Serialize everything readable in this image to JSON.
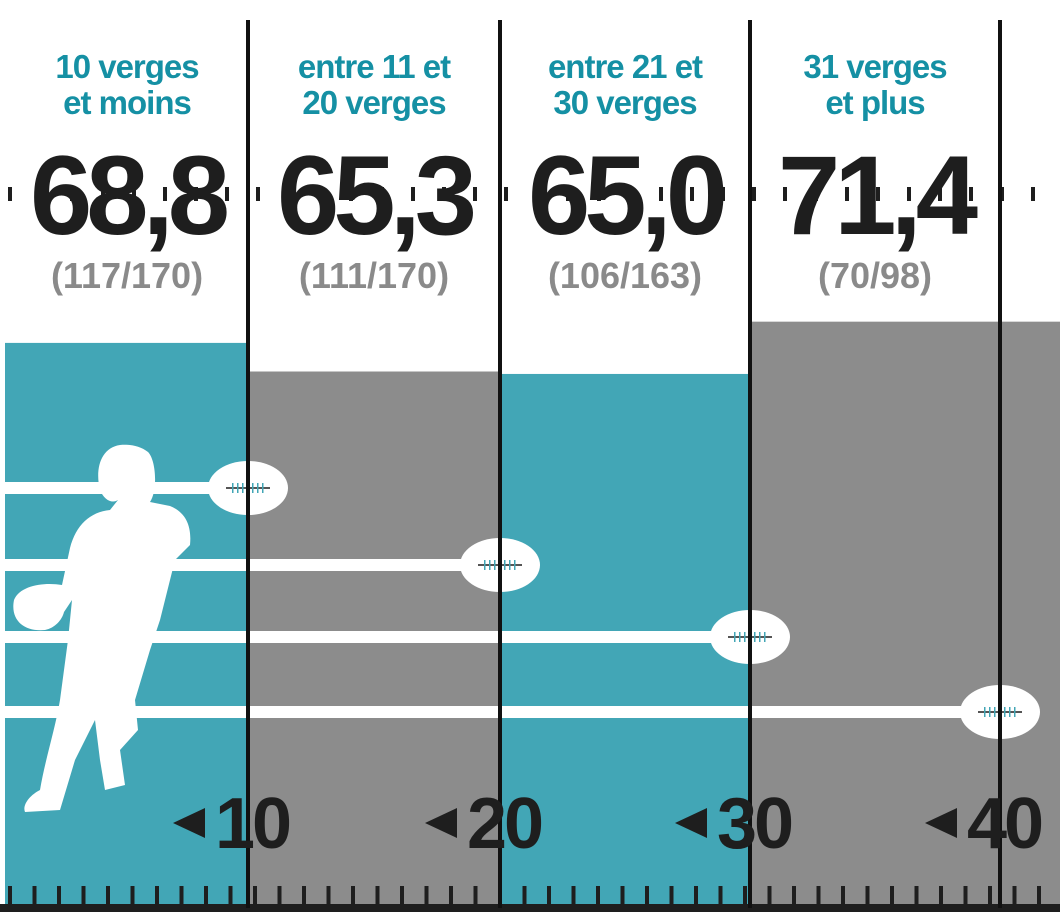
{
  "chart_data": {
    "type": "bar",
    "categories": [
      [
        "10 verges",
        "et moins"
      ],
      [
        "entre 11 et",
        "20 verges"
      ],
      [
        "entre 21 et",
        "30 verges"
      ],
      [
        "31 verges",
        "et plus"
      ]
    ],
    "values": [
      68.8,
      65.3,
      65.0,
      71.4
    ],
    "value_labels": [
      "68,8",
      "65,3",
      "65,0",
      "71,4"
    ],
    "fractions": [
      "(117/170)",
      "(111/170)",
      "(106/163)",
      "(70/98)"
    ],
    "colors": [
      "#42a6b6",
      "#8c8c8c",
      "#42a6b6",
      "#8c8c8c"
    ],
    "yard_markers": [
      10,
      20,
      30,
      40
    ]
  }
}
